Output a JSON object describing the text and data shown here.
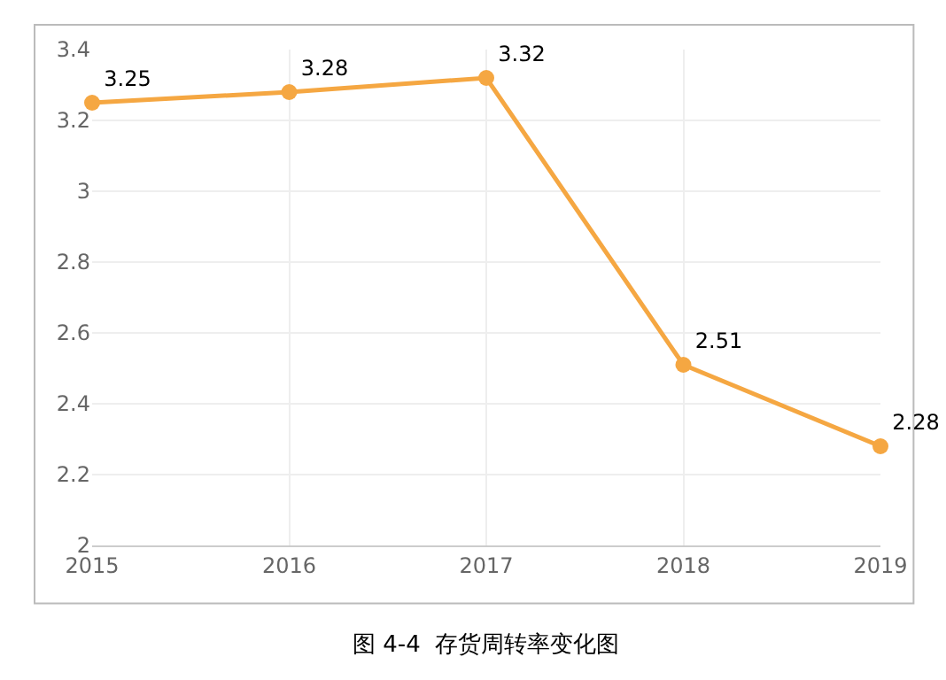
{
  "chart_data": {
    "type": "line",
    "x": [
      2015,
      2016,
      2017,
      2018,
      2019
    ],
    "series": [
      {
        "color": "#f5a742",
        "values": [
          3.25,
          3.28,
          3.32,
          2.51,
          2.28
        ]
      }
    ],
    "xlim": [
      2015,
      2019
    ],
    "xticks": [
      2015,
      2016,
      2017,
      2018,
      2019
    ],
    "ylim": [
      2,
      3.4
    ],
    "yticks": [
      2,
      2.2,
      2.4,
      2.6,
      2.8,
      3,
      3.2,
      3.4
    ],
    "grid": true,
    "marker": "circle",
    "line_style": "solid",
    "data_labels": true,
    "annotations": [
      "图 4-4  存货周转率变化图"
    ]
  }
}
